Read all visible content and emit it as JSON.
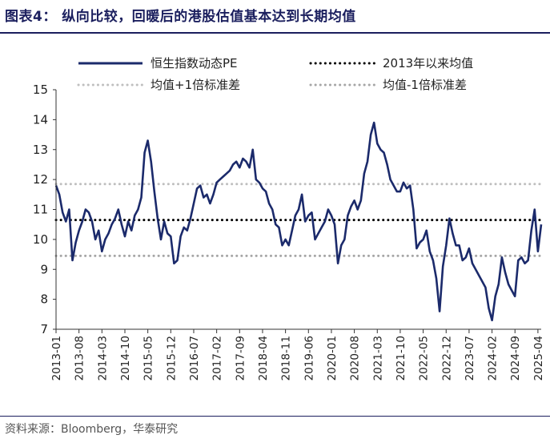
{
  "figure": {
    "title": "图表4： 纵向比较，回暖后的港股估值基本达到长期均值",
    "source": "资料来源：Bloomberg，华泰研究"
  },
  "chart_data": {
    "type": "line",
    "ylim": [
      7,
      15
    ],
    "yticks": [
      7,
      8,
      9,
      10,
      11,
      12,
      13,
      14,
      15
    ],
    "x_range": [
      "2013-01",
      "2025-05"
    ],
    "xticks": [
      "2013-01",
      "2013-08",
      "2014-03",
      "2014-10",
      "2015-05",
      "2015-12",
      "2016-07",
      "2017-02",
      "2017-09",
      "2018-04",
      "2018-11",
      "2019-06",
      "2020-01",
      "2020-08",
      "2021-03",
      "2021-10",
      "2022-05",
      "2022-12",
      "2023-07",
      "2024-02",
      "2024-09",
      "2025-04"
    ],
    "grid": false,
    "legend_position": "top",
    "series": [
      {
        "name": "恒生指数动态PE",
        "style": "solid",
        "color": "#1b2a6b",
        "points": [
          [
            "2013-01",
            11.8
          ],
          [
            "2013-02",
            11.5
          ],
          [
            "2013-03",
            10.9
          ],
          [
            "2013-04",
            10.6
          ],
          [
            "2013-05",
            11.0
          ],
          [
            "2013-06",
            9.3
          ],
          [
            "2013-07",
            9.9
          ],
          [
            "2013-08",
            10.3
          ],
          [
            "2013-09",
            10.6
          ],
          [
            "2013-10",
            11.0
          ],
          [
            "2013-11",
            10.9
          ],
          [
            "2013-12",
            10.6
          ],
          [
            "2014-01",
            10.0
          ],
          [
            "2014-02",
            10.3
          ],
          [
            "2014-03",
            9.6
          ],
          [
            "2014-04",
            10.0
          ],
          [
            "2014-05",
            10.2
          ],
          [
            "2014-06",
            10.5
          ],
          [
            "2014-07",
            10.7
          ],
          [
            "2014-08",
            11.0
          ],
          [
            "2014-09",
            10.5
          ],
          [
            "2014-10",
            10.1
          ],
          [
            "2014-11",
            10.6
          ],
          [
            "2014-12",
            10.3
          ],
          [
            "2015-01",
            10.8
          ],
          [
            "2015-02",
            11.0
          ],
          [
            "2015-03",
            11.4
          ],
          [
            "2015-04",
            12.9
          ],
          [
            "2015-05",
            13.3
          ],
          [
            "2015-06",
            12.6
          ],
          [
            "2015-07",
            11.6
          ],
          [
            "2015-08",
            10.7
          ],
          [
            "2015-09",
            10.0
          ],
          [
            "2015-10",
            10.6
          ],
          [
            "2015-11",
            10.2
          ],
          [
            "2015-12",
            10.1
          ],
          [
            "2016-01",
            9.2
          ],
          [
            "2016-02",
            9.3
          ],
          [
            "2016-03",
            10.1
          ],
          [
            "2016-04",
            10.4
          ],
          [
            "2016-05",
            10.3
          ],
          [
            "2016-06",
            10.7
          ],
          [
            "2016-07",
            11.2
          ],
          [
            "2016-08",
            11.7
          ],
          [
            "2016-09",
            11.8
          ],
          [
            "2016-10",
            11.4
          ],
          [
            "2016-11",
            11.5
          ],
          [
            "2016-12",
            11.2
          ],
          [
            "2017-01",
            11.5
          ],
          [
            "2017-02",
            11.9
          ],
          [
            "2017-03",
            12.0
          ],
          [
            "2017-04",
            12.1
          ],
          [
            "2017-05",
            12.2
          ],
          [
            "2017-06",
            12.3
          ],
          [
            "2017-07",
            12.5
          ],
          [
            "2017-08",
            12.6
          ],
          [
            "2017-09",
            12.4
          ],
          [
            "2017-10",
            12.7
          ],
          [
            "2017-11",
            12.6
          ],
          [
            "2017-12",
            12.4
          ],
          [
            "2018-01",
            13.0
          ],
          [
            "2018-02",
            12.0
          ],
          [
            "2018-03",
            11.9
          ],
          [
            "2018-04",
            11.7
          ],
          [
            "2018-05",
            11.6
          ],
          [
            "2018-06",
            11.2
          ],
          [
            "2018-07",
            11.0
          ],
          [
            "2018-08",
            10.5
          ],
          [
            "2018-09",
            10.4
          ],
          [
            "2018-10",
            9.8
          ],
          [
            "2018-11",
            10.0
          ],
          [
            "2018-12",
            9.8
          ],
          [
            "2019-01",
            10.3
          ],
          [
            "2019-02",
            10.8
          ],
          [
            "2019-03",
            11.0
          ],
          [
            "2019-04",
            11.5
          ],
          [
            "2019-05",
            10.6
          ],
          [
            "2019-06",
            10.8
          ],
          [
            "2019-07",
            10.9
          ],
          [
            "2019-08",
            10.0
          ],
          [
            "2019-09",
            10.2
          ],
          [
            "2019-10",
            10.4
          ],
          [
            "2019-11",
            10.6
          ],
          [
            "2019-12",
            11.0
          ],
          [
            "2020-01",
            10.8
          ],
          [
            "2020-02",
            10.5
          ],
          [
            "2020-03",
            9.2
          ],
          [
            "2020-04",
            9.8
          ],
          [
            "2020-05",
            10.0
          ],
          [
            "2020-06",
            10.8
          ],
          [
            "2020-07",
            11.1
          ],
          [
            "2020-08",
            11.3
          ],
          [
            "2020-09",
            11.0
          ],
          [
            "2020-10",
            11.3
          ],
          [
            "2020-11",
            12.2
          ],
          [
            "2020-12",
            12.6
          ],
          [
            "2021-01",
            13.5
          ],
          [
            "2021-02",
            13.9
          ],
          [
            "2021-03",
            13.2
          ],
          [
            "2021-04",
            13.0
          ],
          [
            "2021-05",
            12.9
          ],
          [
            "2021-06",
            12.5
          ],
          [
            "2021-07",
            12.0
          ],
          [
            "2021-08",
            11.8
          ],
          [
            "2021-09",
            11.6
          ],
          [
            "2021-10",
            11.6
          ],
          [
            "2021-11",
            11.9
          ],
          [
            "2021-12",
            11.7
          ],
          [
            "2022-01",
            11.8
          ],
          [
            "2022-02",
            11.0
          ],
          [
            "2022-03",
            9.7
          ],
          [
            "2022-04",
            9.9
          ],
          [
            "2022-05",
            10.0
          ],
          [
            "2022-06",
            10.3
          ],
          [
            "2022-07",
            9.6
          ],
          [
            "2022-08",
            9.3
          ],
          [
            "2022-09",
            8.7
          ],
          [
            "2022-10",
            7.6
          ],
          [
            "2022-11",
            9.1
          ],
          [
            "2022-12",
            9.8
          ],
          [
            "2023-01",
            10.7
          ],
          [
            "2023-02",
            10.2
          ],
          [
            "2023-03",
            9.8
          ],
          [
            "2023-04",
            9.8
          ],
          [
            "2023-05",
            9.3
          ],
          [
            "2023-06",
            9.4
          ],
          [
            "2023-07",
            9.7
          ],
          [
            "2023-08",
            9.2
          ],
          [
            "2023-09",
            9.0
          ],
          [
            "2023-10",
            8.8
          ],
          [
            "2023-11",
            8.6
          ],
          [
            "2023-12",
            8.4
          ],
          [
            "2024-01",
            7.7
          ],
          [
            "2024-02",
            7.3
          ],
          [
            "2024-03",
            8.1
          ],
          [
            "2024-04",
            8.5
          ],
          [
            "2024-05",
            9.4
          ],
          [
            "2024-06",
            8.9
          ],
          [
            "2024-07",
            8.5
          ],
          [
            "2024-08",
            8.3
          ],
          [
            "2024-09",
            8.1
          ],
          [
            "2024-10",
            9.3
          ],
          [
            "2024-11",
            9.4
          ],
          [
            "2024-12",
            9.2
          ],
          [
            "2025-01",
            9.3
          ],
          [
            "2025-02",
            10.3
          ],
          [
            "2025-03",
            11.0
          ],
          [
            "2025-04",
            9.6
          ],
          [
            "2025-05",
            10.5
          ]
        ]
      },
      {
        "name": "2013年以来均值",
        "style": "dotted",
        "color": "#000000",
        "value": 10.65
      },
      {
        "name": "均值+1倍标准差",
        "style": "dotted",
        "color": "#bfbfbf",
        "value": 11.85
      },
      {
        "name": "均值-1倍标准差",
        "style": "dotted",
        "color": "#a6a6a6",
        "value": 9.45
      }
    ]
  }
}
